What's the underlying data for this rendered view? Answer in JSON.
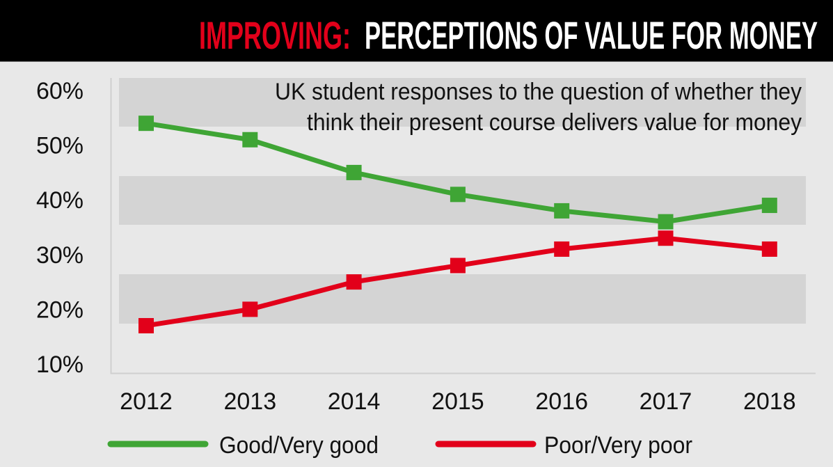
{
  "chart_data": {
    "type": "line",
    "title_highlight": "IMPROVING:",
    "title": "PERCEPTIONS OF VALUE FOR MONEY",
    "subtitle_lines": [
      "UK student responses to the question of whether they",
      "think their present course delivers value for money"
    ],
    "xlabel": "",
    "ylabel": "",
    "x": [
      "2012",
      "2013",
      "2014",
      "2015",
      "2016",
      "2017",
      "2018"
    ],
    "y_ticks": [
      "60%",
      "50%",
      "40%",
      "30%",
      "20%",
      "10%"
    ],
    "ylim": [
      10,
      60
    ],
    "grid": "alternating bands",
    "legend_position": "bottom",
    "series": [
      {
        "name": "Good/Very good",
        "color": "#3fa535",
        "values": [
          54,
          51,
          45,
          41,
          38,
          36,
          39
        ]
      },
      {
        "name": "Poor/Very poor",
        "color": "#e2001a",
        "values": [
          17,
          20,
          25,
          28,
          31,
          33,
          31
        ]
      }
    ]
  },
  "colors": {
    "header_bg": "#000000",
    "highlight": "#e2001a",
    "title": "#ffffff",
    "background": "#e8e8e8",
    "band": "#d4d4d4"
  }
}
